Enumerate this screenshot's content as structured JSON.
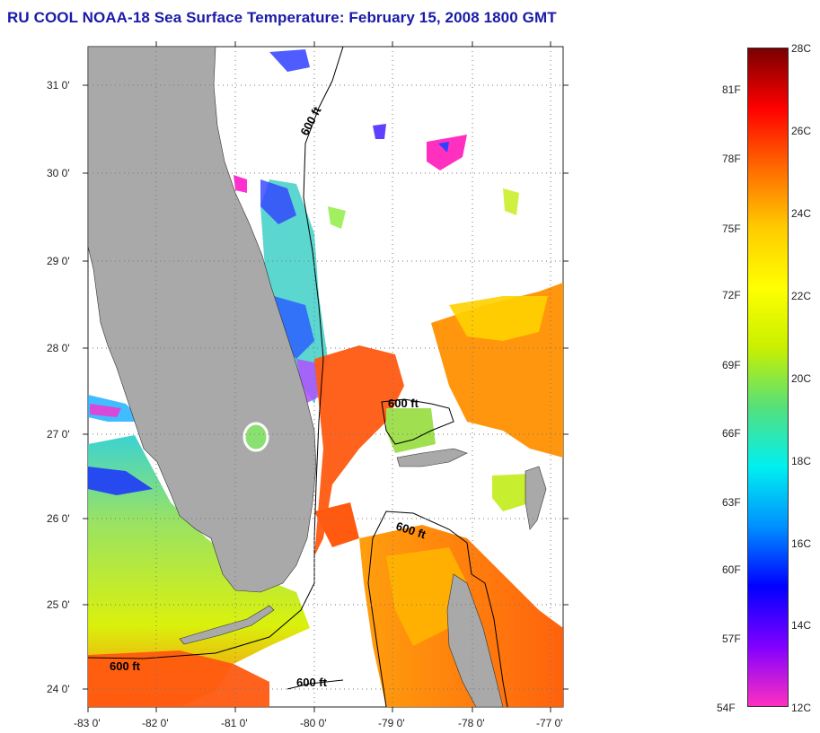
{
  "title": "RU COOL  NOAA-18  Sea Surface Temperature:  February 15, 2008 1800 GMT",
  "map": {
    "latitude_labels": [
      "31 0'",
      "30 0'",
      "29 0'",
      "28 0'",
      "27 0'",
      "26 0'",
      "25 0'",
      "24 0'"
    ],
    "longitude_labels": [
      "-83 0'",
      "-82 0'",
      "-81 0'",
      "-80 0'",
      "-79 0'",
      "-78 0'",
      "-77 0'"
    ],
    "contour_labels": [
      "600 ft",
      "600 ft",
      "600 ft",
      "600 ft",
      "600 ft"
    ],
    "colors": {
      "land": "#a9a9a9",
      "grid": "#777777",
      "contour": "#000000"
    }
  },
  "colorbar": {
    "celsius_labels": [
      "28C",
      "26C",
      "24C",
      "22C",
      "20C",
      "18C",
      "16C",
      "14C",
      "12C"
    ],
    "fahrenheit_labels": [
      "81F",
      "78F",
      "75F",
      "72F",
      "69F",
      "66F",
      "63F",
      "60F",
      "57F",
      "54F"
    ],
    "range_celsius": [
      12,
      28
    ],
    "scale_colors": [
      "#7a0000",
      "#ff0000",
      "#ff6a00",
      "#ffcc00",
      "#ffff00",
      "#c8f000",
      "#55e07a",
      "#00f0f0",
      "#0090ff",
      "#0000ff",
      "#8000ff",
      "#ff30c0"
    ]
  }
}
